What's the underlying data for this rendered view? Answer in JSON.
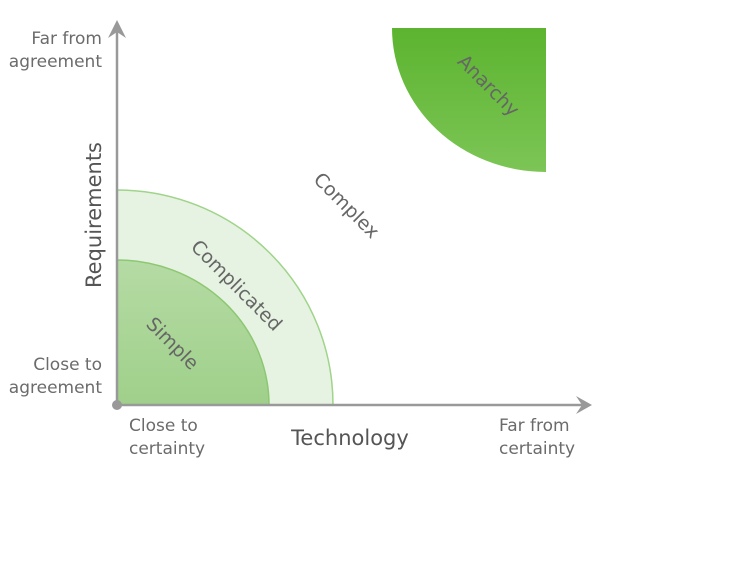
{
  "y_axis": {
    "label": "Requirements",
    "high": [
      "Far from",
      "agreement"
    ],
    "low": [
      "Close to",
      "agreement"
    ]
  },
  "x_axis": {
    "label": "Technology",
    "low": [
      "Close to",
      "certainty"
    ],
    "high": [
      "Far from",
      "certainty"
    ]
  },
  "regions": {
    "simple": "Simple",
    "complicated": "Complicated",
    "complex": "Complex",
    "anarchy": "Anarchy"
  }
}
